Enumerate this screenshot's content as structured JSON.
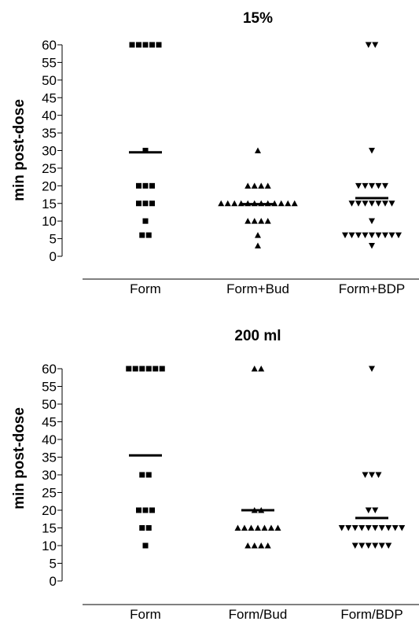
{
  "chart_data": [
    {
      "type": "scatter",
      "title": "15%",
      "ylabel": "min post-dose",
      "ylim": [
        0,
        60
      ],
      "yticks": [
        "60",
        "55",
        "50",
        "45",
        "40",
        "35",
        "30",
        "25",
        "20",
        "15",
        "10",
        "5",
        "0"
      ],
      "categories": [
        "Form",
        "Form+Bud",
        "Form+BDP"
      ],
      "series": [
        {
          "category": "Form",
          "marker": "square",
          "median": 29.5,
          "points": [
            [
              60,
              5
            ],
            [
              30,
              1
            ],
            [
              20,
              3
            ],
            [
              15,
              3
            ],
            [
              10,
              1
            ],
            [
              6,
              2
            ]
          ]
        },
        {
          "category": "Form+Bud",
          "marker": "triangle-up",
          "median": 14.8,
          "points": [
            [
              30,
              1
            ],
            [
              20,
              4
            ],
            [
              15,
              12
            ],
            [
              10,
              4
            ],
            [
              6,
              1
            ],
            [
              3,
              1
            ]
          ]
        },
        {
          "category": "Form+BDP",
          "marker": "triangle-down",
          "median": 16.5,
          "points": [
            [
              60,
              2
            ],
            [
              30,
              1
            ],
            [
              20,
              5
            ],
            [
              15,
              7
            ],
            [
              10,
              1
            ],
            [
              6,
              9
            ],
            [
              3,
              1
            ]
          ]
        }
      ]
    },
    {
      "type": "scatter",
      "title": "200 ml",
      "ylabel": "min post-dose",
      "ylim": [
        0,
        60
      ],
      "yticks": [
        "60",
        "55",
        "50",
        "45",
        "40",
        "35",
        "30",
        "25",
        "20",
        "15",
        "10",
        "5",
        "0"
      ],
      "categories": [
        "Form",
        "Form/Bud",
        "Form/BDP"
      ],
      "series": [
        {
          "category": "Form",
          "marker": "square",
          "median": 35.5,
          "points": [
            [
              60,
              6
            ],
            [
              30,
              2
            ],
            [
              20,
              3
            ],
            [
              15,
              2
            ],
            [
              10,
              1
            ]
          ]
        },
        {
          "category": "Form/Bud",
          "marker": "triangle-up",
          "median": 20,
          "points": [
            [
              60,
              2
            ],
            [
              20,
              2
            ],
            [
              15,
              7
            ],
            [
              10,
              4
            ]
          ]
        },
        {
          "category": "Form/BDP",
          "marker": "triangle-down",
          "median": 17.8,
          "points": [
            [
              60,
              1
            ],
            [
              30,
              3
            ],
            [
              20,
              2
            ],
            [
              15,
              10
            ],
            [
              10,
              6
            ]
          ]
        }
      ]
    }
  ]
}
